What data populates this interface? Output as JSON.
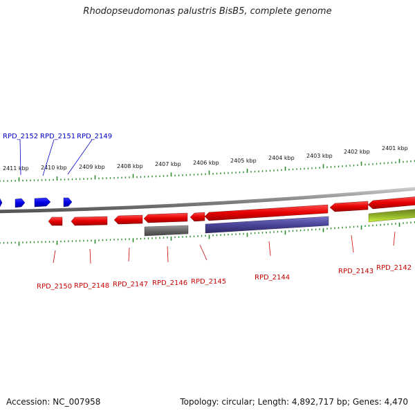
{
  "title": "Rhodopseudomonas palustris BisB5, complete genome",
  "footer": {
    "accession": "Accession: NC_007958",
    "stats": "Topology: circular; Length: 4,892,717 bp; Genes: 4,470"
  },
  "colors": {
    "forward_gene": "#0000e6",
    "reverse_gene": "#e60000",
    "backbone": "#888888",
    "tick": "#2a8a2a",
    "label_forward": "#0000cc",
    "label_reverse": "#cc0000",
    "feature_purple": "#4a4499",
    "feature_gray": "#666666",
    "feature_green": "#a0d020"
  },
  "ruler": {
    "labels": [
      "2411 kbp",
      "2410 kbp",
      "2409 kbp",
      "2408 kbp",
      "2407 kbp",
      "2406 kbp",
      "2405 kbp",
      "2404 kbp",
      "2403 kbp",
      "2402 kbp",
      "2401 kbp"
    ]
  },
  "genes_forward": [
    {
      "label": "RPD_2152",
      "strand": "+"
    },
    {
      "label": "RPD_2151",
      "strand": "+"
    },
    {
      "label": "RPD_2149",
      "strand": "+"
    }
  ],
  "genes_reverse": [
    {
      "label": "RPD_2150",
      "strand": "-"
    },
    {
      "label": "RPD_2148",
      "strand": "-"
    },
    {
      "label": "RPD_2147",
      "strand": "-"
    },
    {
      "label": "RPD_2146",
      "strand": "-"
    },
    {
      "label": "RPD_2145",
      "strand": "-"
    },
    {
      "label": "RPD_2144",
      "strand": "-"
    },
    {
      "label": "RPD_2143",
      "strand": "-"
    },
    {
      "label": "RPD_2142",
      "strand": "-"
    }
  ]
}
